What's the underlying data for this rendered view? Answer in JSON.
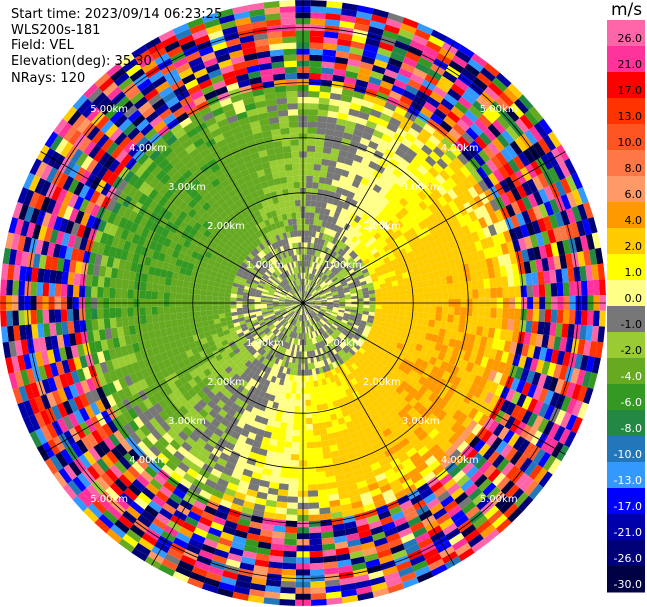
{
  "header": {
    "start_time": "Start time: 2023/09/14 06:23:25",
    "instrument": "WLS200s-181",
    "field": "Field: VEL",
    "elevation": "Elevation(deg): 35.30",
    "nrays": "NRays: 120"
  },
  "colorbar": {
    "unit": "m/s",
    "ticks": [
      "26.0",
      "21.0",
      "17.0",
      "13.0",
      "10.0",
      "8.0",
      "6.0",
      "4.0",
      "2.0",
      "1.0",
      "0.0",
      "-1.0",
      "-2.0",
      "-4.0",
      "-6.0",
      "-8.0",
      "-10.0",
      "-13.0",
      "-17.0",
      "-21.0",
      "-26.0",
      "-30.0"
    ],
    "colors": [
      "#ff66aa",
      "#ff3399",
      "#ff0000",
      "#ff3300",
      "#ff5522",
      "#ff7744",
      "#ff9966",
      "#ff9900",
      "#ffcc00",
      "#ffff00",
      "#ffff88",
      "#777777",
      "#99cc33",
      "#66aa22",
      "#339922",
      "#228844",
      "#2277bb",
      "#3399ff",
      "#0000ff",
      "#0000aa",
      "#000077",
      "#000044",
      "#000022"
    ]
  },
  "chart_data": {
    "type": "heatmap",
    "projection": "polar PPI",
    "field": "VEL",
    "units": "m/s",
    "nrays": 120,
    "elevation_deg": 35.3,
    "range_rings_km": [
      1.0,
      2.0,
      3.0,
      4.0,
      5.0
    ],
    "ring_labels": [
      "1.00km",
      "2.00km",
      "3.00km",
      "4.00km",
      "5.00km"
    ],
    "spokes_deg": [
      0,
      30,
      60,
      90,
      120,
      150,
      180,
      210,
      240,
      270,
      300,
      330
    ],
    "value_range": [
      -30,
      30
    ],
    "grid": true
  }
}
